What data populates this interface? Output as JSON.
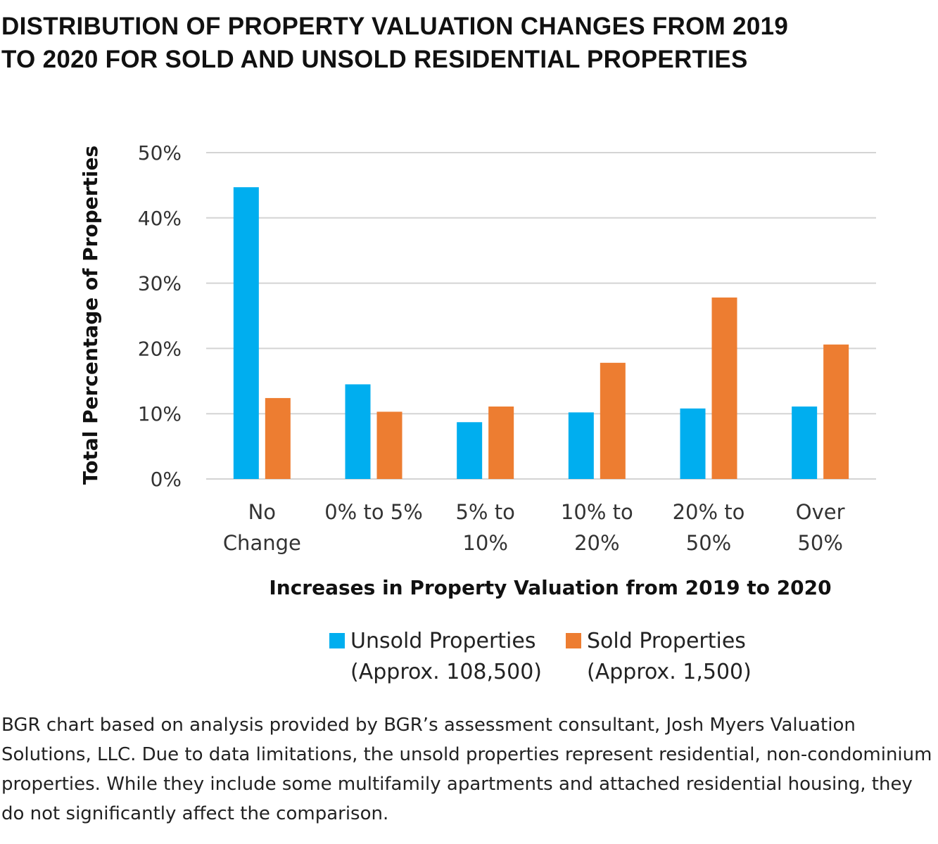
{
  "title_lines": [
    "DISTRIBUTION OF PROPERTY VALUATION CHANGES FROM 2019",
    "TO 2020 FOR SOLD AND UNSOLD RESIDENTIAL PROPERTIES"
  ],
  "chart_data": {
    "type": "bar",
    "title": "Distribution of Property Valuation Changes from 2019 to 2020 for Sold and Unsold Residential Properties",
    "xlabel": "Increases in Property Valuation from 2019 to 2020",
    "ylabel": "Total Percentage of Properties",
    "ylim": [
      0,
      50
    ],
    "yticks": [
      0,
      10,
      20,
      30,
      40,
      50
    ],
    "ytick_labels": [
      "0%",
      "10%",
      "20%",
      "30%",
      "40%",
      "50%"
    ],
    "grid": true,
    "legend_position": "bottom",
    "categories": [
      [
        "No",
        "Change"
      ],
      [
        "0% to 5%"
      ],
      [
        "5% to",
        "10%"
      ],
      [
        "10% to",
        "20%"
      ],
      [
        "20% to",
        "50%"
      ],
      [
        "Over",
        "50%"
      ]
    ],
    "series": [
      {
        "name": "Unsold Properties (Approx. 108,500)",
        "legend_lines": [
          "Unsold Properties",
          "(Approx. 108,500)"
        ],
        "color": "#00AEEF",
        "values": [
          44.7,
          14.5,
          8.7,
          10.2,
          10.8,
          11.1
        ]
      },
      {
        "name": "Sold Properties (Approx. 1,500)",
        "legend_lines": [
          "Sold Properties",
          "(Approx. 1,500)"
        ],
        "color": "#ED7D31",
        "values": [
          12.4,
          10.3,
          11.1,
          17.8,
          27.8,
          20.6
        ]
      }
    ]
  },
  "note": "BGR chart based on analysis provided by BGR’s assessment consultant, Josh Myers Valuation Solutions, LLC. Due to data limitations, the unsold properties represent residential, non-condominium properties. While they include some multifamily apartments and attached residential housing, they do not significantly affect the comparison."
}
